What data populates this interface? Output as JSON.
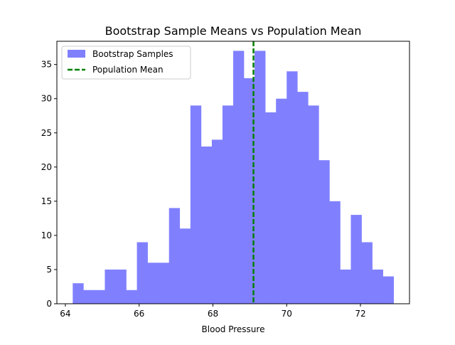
{
  "chart_data": {
    "type": "bar",
    "title": "Bootstrap Sample Means vs Population Mean",
    "xlabel": "Blood Pressure",
    "ylabel": "",
    "xlim": [
      63.77,
      73.33
    ],
    "ylim": [
      0,
      38.4
    ],
    "grid": false,
    "legend_position": "top-left",
    "bins": {
      "edges": [
        64.2,
        64.49,
        64.78,
        65.07,
        65.36,
        65.65,
        65.94,
        66.23,
        66.52,
        66.81,
        67.1,
        67.39,
        67.68,
        67.97,
        68.26,
        68.55,
        68.84,
        69.13,
        69.42,
        69.71,
        70.0,
        70.29,
        70.58,
        70.87,
        71.16,
        71.45,
        71.74,
        72.03,
        72.32,
        72.61,
        72.9
      ],
      "counts": [
        3,
        2,
        2,
        5,
        5,
        2,
        9,
        6,
        6,
        14,
        11,
        29,
        23,
        24,
        29,
        37,
        33,
        37,
        28,
        30,
        34,
        31,
        29,
        21,
        15,
        5,
        13,
        9,
        5,
        4
      ]
    },
    "series": [
      {
        "name": "Bootstrap Samples",
        "kind": "histogram",
        "color": "#8080ff"
      },
      {
        "name": "Population Mean",
        "kind": "vline",
        "value": 69.1,
        "color": "#008000",
        "style": "dashed"
      }
    ],
    "x_ticks": [
      64,
      66,
      68,
      70,
      72
    ],
    "y_ticks": [
      0,
      5,
      10,
      15,
      20,
      25,
      30,
      35
    ]
  }
}
